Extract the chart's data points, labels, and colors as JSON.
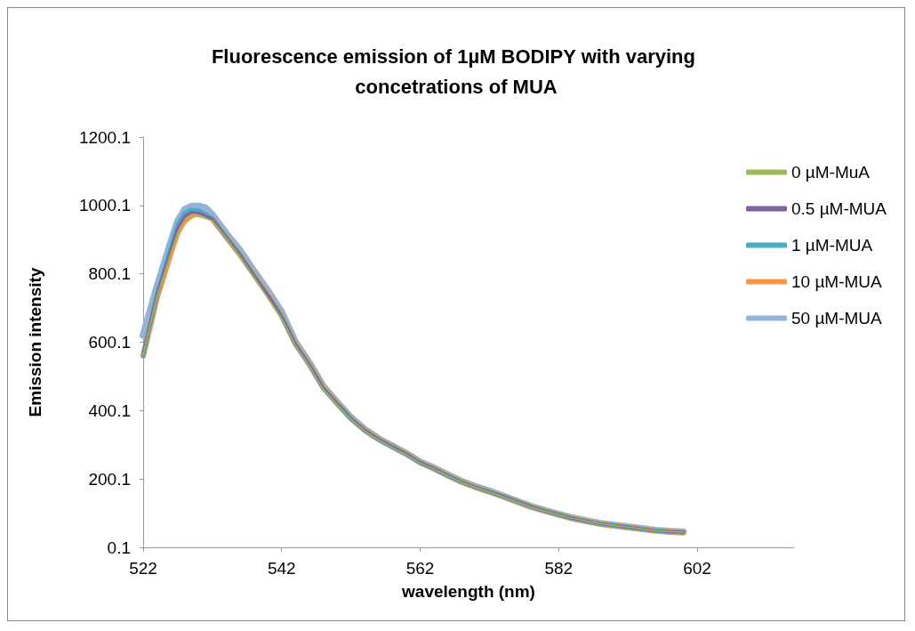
{
  "chart_data": {
    "type": "line",
    "title": "Fluorescence emission of 1µM BODIPY with varying concetrations of MUA",
    "xlabel": "wavelength (nm)",
    "ylabel": "Emission intensity",
    "x": [
      522,
      524,
      526,
      527,
      528,
      529,
      530,
      531,
      532,
      534,
      536,
      538,
      540,
      542,
      544,
      546,
      548,
      550,
      552,
      554,
      556,
      558,
      560,
      562,
      564,
      566,
      568,
      570,
      572,
      574,
      576,
      578,
      580,
      582,
      584,
      586,
      588,
      590,
      592,
      594,
      596,
      598,
      600
    ],
    "series": [
      {
        "name": "0 µM-MuA",
        "color": "#9bbb59",
        "values": [
          565,
          735,
          860,
          920,
          955,
          970,
          968,
          962,
          955,
          905,
          850,
          790,
          730,
          670,
          590,
          530,
          462,
          418,
          375,
          340,
          314,
          292,
          271,
          247,
          229,
          209,
          190,
          175,
          162,
          148,
          133,
          118,
          106,
          95,
          85,
          77,
          69,
          64,
          59,
          54,
          49,
          46,
          44
        ]
      },
      {
        "name": "0.5 µM-MUA",
        "color": "#8064a2",
        "values": [
          570,
          740,
          870,
          935,
          968,
          980,
          978,
          970,
          960,
          908,
          855,
          795,
          738,
          675,
          594,
          534,
          466,
          421,
          377,
          342,
          316,
          294,
          273,
          248,
          230,
          210,
          191,
          176,
          163,
          149,
          134,
          119,
          107,
          96,
          85,
          77,
          69,
          64,
          59,
          54,
          49,
          46,
          44
        ]
      },
      {
        "name": "1 µM-MUA",
        "color": "#4bacc6",
        "values": [
          560,
          742,
          878,
          945,
          978,
          988,
          985,
          975,
          962,
          908,
          856,
          796,
          738,
          676,
          594,
          534,
          466,
          421,
          377,
          342,
          316,
          294,
          273,
          248,
          230,
          210,
          191,
          176,
          163,
          149,
          134,
          119,
          107,
          96,
          85,
          77,
          69,
          64,
          59,
          54,
          49,
          46,
          44
        ]
      },
      {
        "name": "10 µM-MUA",
        "color": "#f79646",
        "values": [
          560,
          730,
          860,
          922,
          955,
          970,
          978,
          972,
          960,
          908,
          856,
          798,
          740,
          678,
          596,
          536,
          468,
          422,
          378,
          343,
          317,
          295,
          274,
          249,
          231,
          211,
          192,
          176,
          163,
          149,
          134,
          119,
          107,
          96,
          85,
          77,
          69,
          64,
          59,
          54,
          49,
          46,
          44
        ]
      },
      {
        "name": "50 µM-MUA",
        "color": "#95b3d7",
        "values": [
          620,
          763,
          893,
          955,
          988,
          998,
          998,
          993,
          973,
          918,
          868,
          808,
          751,
          688,
          600,
          540,
          471,
          425,
          380,
          345,
          318,
          296,
          275,
          250,
          232,
          212,
          193,
          178,
          165,
          150,
          135,
          120,
          108,
          97,
          86,
          78,
          70,
          65,
          60,
          55,
          50,
          47,
          45
        ]
      }
    ],
    "xlim": [
      522,
      616
    ],
    "xticks": [
      522,
      542,
      562,
      582,
      602
    ],
    "ylim": [
      0.1,
      1200.1
    ],
    "yticks": [
      0.1,
      200.1,
      400.1,
      600.1,
      800.1,
      1000.1,
      1200.1
    ],
    "grid": false,
    "legend": "right",
    "marker": "none",
    "line_style": "solid"
  }
}
